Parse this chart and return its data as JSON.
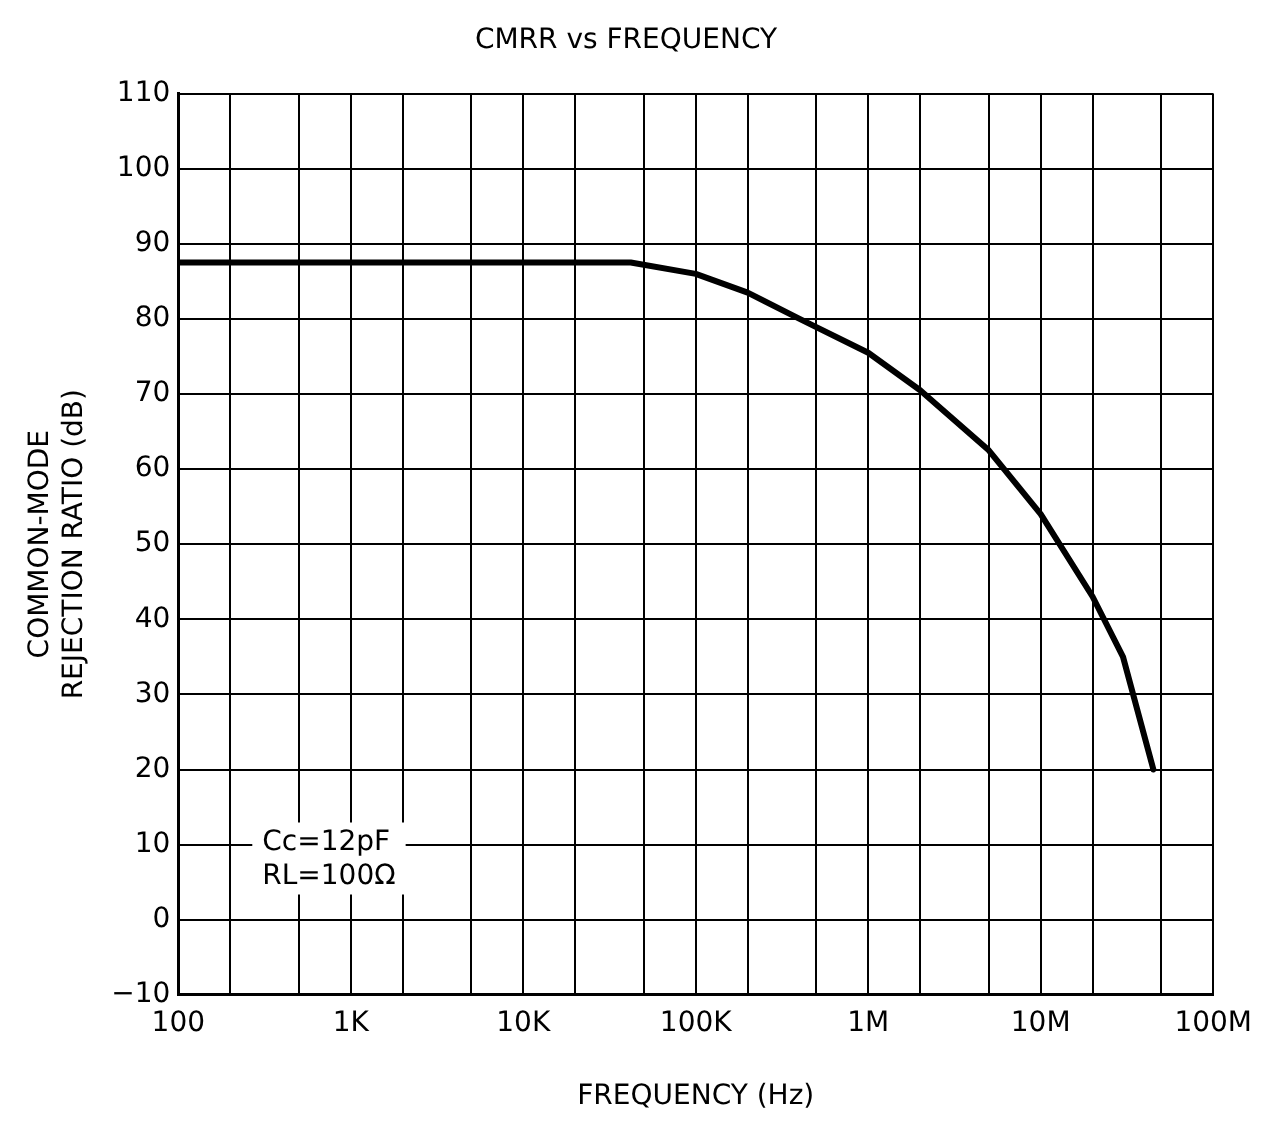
{
  "chart_data": {
    "type": "line",
    "title": "CMRR vs FREQUENCY",
    "xlabel": "FREQUENCY (Hz)",
    "ylabel": "COMMON-MODE\nREJECTION RATIO (dB)",
    "x": [
      100,
      1000,
      10000,
      42000,
      100000,
      200000,
      400000,
      1000000,
      2000000,
      5000000,
      10000000,
      20000000,
      30000000,
      45000000
    ],
    "series": [
      {
        "color": "#000000",
        "values": [
          87.5,
          87.5,
          87.5,
          87.5,
          86,
          83.5,
          80,
          75.5,
          70.5,
          62.5,
          54,
          43,
          35,
          20
        ]
      }
    ],
    "log": "x",
    "xlim": [
      100,
      100000000
    ],
    "xticks": [
      100,
      {
        "value": 200,
        "label": null
      },
      {
        "value": 500,
        "label": null
      },
      {
        "value": 1000,
        "label": "1K"
      },
      {
        "value": 2000,
        "label": null
      },
      {
        "value": 5000,
        "label": null
      },
      {
        "value": 10000,
        "label": "10K"
      },
      {
        "value": 20000,
        "label": null
      },
      {
        "value": 50000,
        "label": null
      },
      {
        "value": 100000,
        "label": "100K"
      },
      {
        "value": 200000,
        "label": null
      },
      {
        "value": 500000,
        "label": null
      },
      {
        "value": 1000000,
        "label": "1M"
      },
      {
        "value": 2000000,
        "label": null
      },
      {
        "value": 5000000,
        "label": null
      },
      {
        "value": 10000000,
        "label": "10M"
      },
      {
        "value": 20000000,
        "label": null
      },
      {
        "value": 50000000,
        "label": null
      },
      {
        "value": 100000000,
        "label": "100M"
      }
    ],
    "ylim": [
      -10,
      110
    ],
    "yticks": [
      -10,
      0,
      10,
      20,
      30,
      40,
      50,
      60,
      70,
      80,
      90,
      100,
      110
    ],
    "grid": true,
    "legend": false,
    "marker": "none",
    "line_style": "solid",
    "annotations": [
      "Cc=12pF",
      "RL=100Ω"
    ]
  }
}
